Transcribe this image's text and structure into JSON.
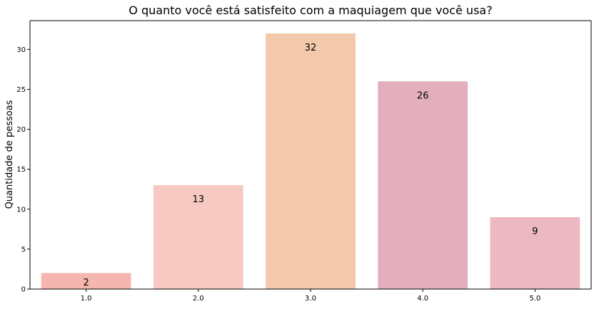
{
  "chart_data": {
    "type": "bar",
    "title": "O quanto você está satisfeito com a maquiagem que você usa?",
    "xlabel": "",
    "ylabel": "Quantidade de pessoas",
    "categories": [
      "1.0",
      "2.0",
      "3.0",
      "4.0",
      "5.0"
    ],
    "values": [
      2,
      13,
      32,
      26,
      9
    ],
    "data_labels": [
      "2",
      "13",
      "32",
      "26",
      "9"
    ],
    "colors": [
      "#f4b6ae",
      "#f7c9c3",
      "#f2c9aa",
      "#e3afbd",
      "#ecb8c2"
    ],
    "ylim": [
      0,
      33.6
    ],
    "yticks": [
      0,
      5,
      10,
      15,
      20,
      25,
      30
    ],
    "ytick_labels": [
      "0",
      "5",
      "10",
      "15",
      "20",
      "25",
      "30"
    ],
    "grid": false,
    "legend": "none"
  }
}
